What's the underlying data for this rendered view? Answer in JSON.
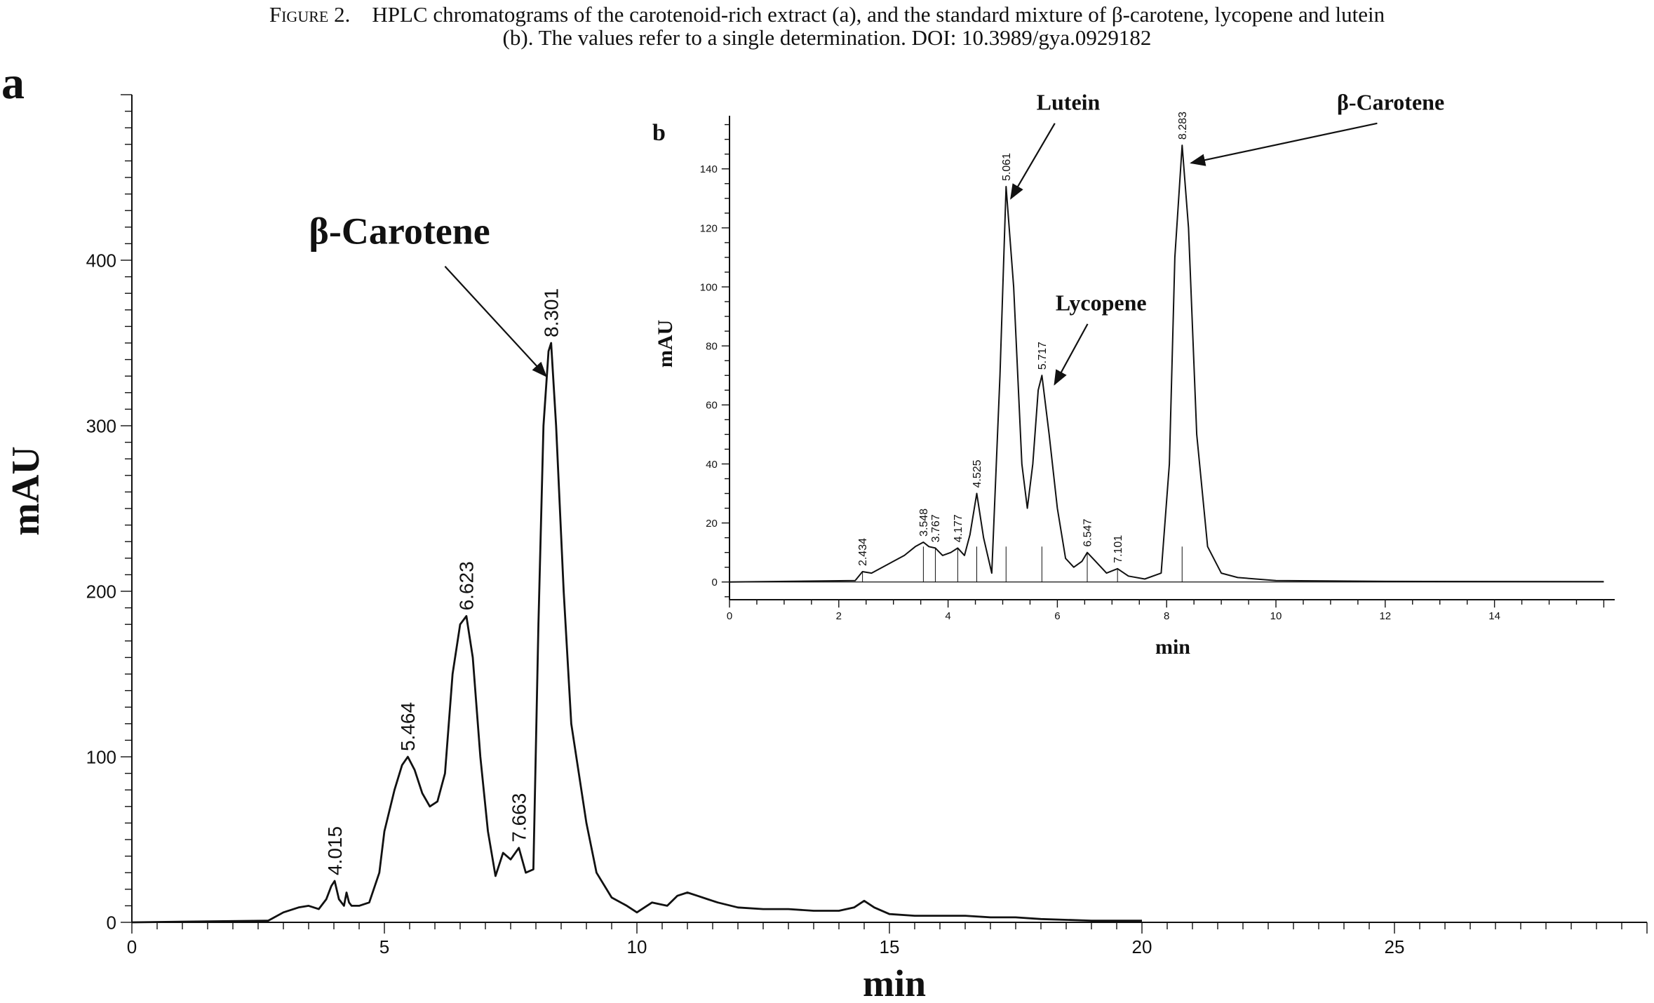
{
  "caption": {
    "figure_label": "Figure 2.",
    "line1": "HPLC chromatograms of the carotenoid-rich extract (a), and the standard mixture of β-carotene, lycopene and lutein",
    "line2": "(b). The values refer to a single determination. DOI: 10.3989/gya.0929182"
  },
  "chart_data": [
    {
      "panel": "a",
      "type": "line",
      "xlabel": "min",
      "ylabel": "mAU",
      "xlim": [
        0,
        30
      ],
      "ylim": [
        0,
        500
      ],
      "xticks": [
        0,
        5,
        10,
        15,
        20,
        25
      ],
      "yticks": [
        0,
        100,
        200,
        300,
        400
      ],
      "grid": false,
      "series": [
        {
          "x": [
            0,
            2.7,
            3.0,
            3.3,
            3.5,
            3.7,
            3.85,
            3.95,
            4.015,
            4.1,
            4.2,
            4.25,
            4.3,
            4.35,
            4.5,
            4.7,
            4.9,
            5.0,
            5.2,
            5.35,
            5.464,
            5.6,
            5.75,
            5.9,
            6.05,
            6.2,
            6.35,
            6.5,
            6.623,
            6.75,
            6.9,
            7.05,
            7.2,
            7.35,
            7.5,
            7.663,
            7.8,
            7.95,
            8.05,
            8.15,
            8.25,
            8.301,
            8.4,
            8.55,
            8.7,
            8.85,
            9.0,
            9.2,
            9.5,
            9.8,
            10.0,
            10.3,
            10.6,
            10.8,
            11.0,
            11.2,
            11.4,
            11.6,
            12.0,
            12.5,
            13.0,
            13.5,
            14.0,
            14.3,
            14.5,
            14.7,
            15.0,
            15.5,
            16.0,
            16.5,
            17.0,
            17.5,
            18.0,
            19.0,
            20.0
          ],
          "y": [
            0,
            1,
            6,
            9,
            10,
            8,
            14,
            22,
            25,
            14,
            10,
            18,
            12,
            10,
            10,
            12,
            30,
            55,
            80,
            95,
            100,
            92,
            78,
            70,
            73,
            90,
            150,
            180,
            185,
            160,
            100,
            55,
            28,
            42,
            38,
            45,
            30,
            32,
            180,
            300,
            345,
            350,
            300,
            200,
            120,
            90,
            60,
            30,
            15,
            10,
            6,
            12,
            10,
            16,
            18,
            16,
            14,
            12,
            9,
            8,
            8,
            7,
            7,
            9,
            13,
            9,
            5,
            4,
            4,
            4,
            3,
            3,
            2,
            1,
            1
          ]
        }
      ],
      "annotations": [
        {
          "label": "4.015",
          "x": 4.015,
          "y": 25
        },
        {
          "label": "5.464",
          "x": 5.464,
          "y": 100
        },
        {
          "label": "6.623",
          "x": 6.623,
          "y": 185
        },
        {
          "label": "7.663",
          "x": 7.663,
          "y": 45
        },
        {
          "label": "8.301",
          "x": 8.301,
          "y": 350
        }
      ],
      "compound_labels": [
        {
          "label": "β-Carotene",
          "x": 5.3,
          "y": 410,
          "arrow_to": {
            "x": 8.2,
            "y": 330
          }
        }
      ]
    },
    {
      "panel": "b",
      "type": "line",
      "xlabel": "min",
      "ylabel": "mAU",
      "xlim": [
        0,
        16.2
      ],
      "ylim": [
        -6,
        158
      ],
      "xticks": [
        0,
        2,
        4,
        6,
        8,
        10,
        12,
        14
      ],
      "yticks": [
        0,
        20,
        40,
        60,
        80,
        100,
        120,
        140
      ],
      "grid": false,
      "series": [
        {
          "x": [
            0,
            2.3,
            2.434,
            2.6,
            2.9,
            3.2,
            3.4,
            3.548,
            3.65,
            3.767,
            3.9,
            4.05,
            4.177,
            4.3,
            4.4,
            4.525,
            4.65,
            4.8,
            4.95,
            5.061,
            5.2,
            5.35,
            5.45,
            5.55,
            5.65,
            5.717,
            5.85,
            6.0,
            6.15,
            6.3,
            6.45,
            6.547,
            6.7,
            6.9,
            7.101,
            7.3,
            7.6,
            7.9,
            8.05,
            8.15,
            8.283,
            8.4,
            8.55,
            8.75,
            9.0,
            9.3,
            10.0,
            12.0,
            16.0
          ],
          "y": [
            0,
            0.5,
            3.5,
            3,
            6,
            9,
            12,
            13.5,
            12,
            11.5,
            9,
            10,
            11.5,
            9,
            16,
            30,
            15,
            3,
            70,
            134,
            100,
            40,
            25,
            40,
            65,
            70,
            50,
            25,
            8,
            5,
            7,
            10,
            7,
            3,
            4.5,
            2,
            1,
            3,
            40,
            110,
            148,
            120,
            50,
            12,
            3,
            1.5,
            0.5,
            0.2,
            0.1
          ]
        }
      ],
      "annotations": [
        {
          "label": "2.434",
          "x": 2.434,
          "y": 3.5
        },
        {
          "label": "3.548",
          "x": 3.548,
          "y": 13.5
        },
        {
          "label": "3.767",
          "x": 3.767,
          "y": 11.5
        },
        {
          "label": "4.177",
          "x": 4.177,
          "y": 11.5
        },
        {
          "label": "4.525",
          "x": 4.525,
          "y": 30
        },
        {
          "label": "5.061",
          "x": 5.061,
          "y": 134
        },
        {
          "label": "5.717",
          "x": 5.717,
          "y": 70
        },
        {
          "label": "6.547",
          "x": 6.547,
          "y": 10
        },
        {
          "label": "7.101",
          "x": 7.101,
          "y": 4.5
        },
        {
          "label": "8.283",
          "x": 8.283,
          "y": 148
        }
      ],
      "compound_labels": [
        {
          "label": "Lutein",
          "x": 6.2,
          "y": 160,
          "arrow_to": {
            "x": 5.15,
            "y": 130
          }
        },
        {
          "label": "Lycopene",
          "x": 6.8,
          "y": 92,
          "arrow_to": {
            "x": 5.95,
            "y": 67
          }
        },
        {
          "label": "β-Carotene",
          "x": 12.1,
          "y": 160,
          "arrow_to": {
            "x": 8.45,
            "y": 142
          }
        }
      ]
    }
  ]
}
